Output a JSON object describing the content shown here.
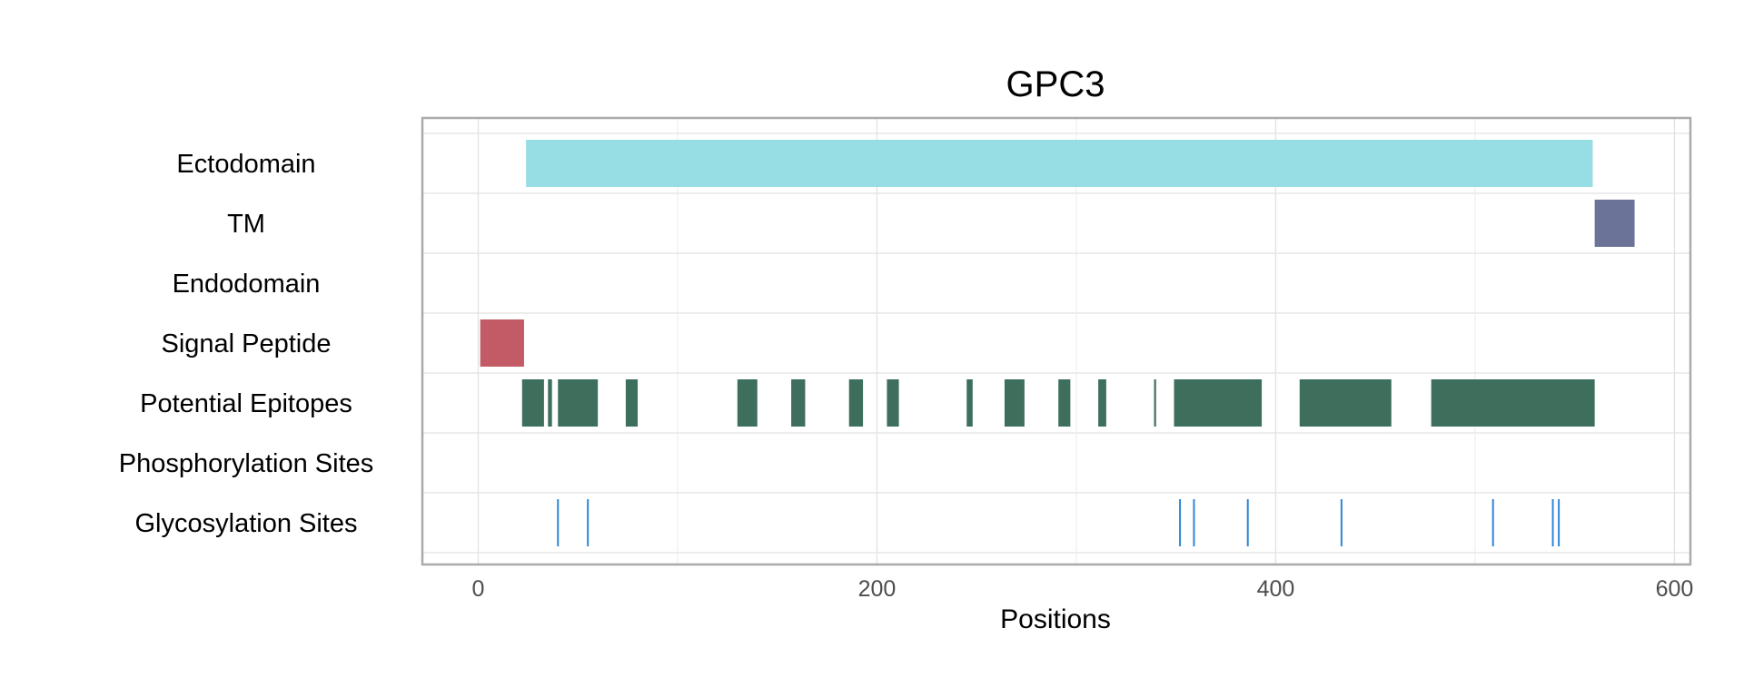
{
  "chart_data": {
    "type": "feature-track",
    "title": "GPC3",
    "xlabel": "Positions",
    "xlim": [
      -28,
      608
    ],
    "x_ticks": [
      0,
      200,
      400,
      600
    ],
    "x_tick_labels": [
      "0",
      "200",
      "400",
      "600"
    ],
    "grid": true,
    "rows": [
      "Ectodomain",
      "TM",
      "Endodomain",
      "Signal Peptide",
      "Potential Epitopes",
      "Phosphorylation Sites",
      "Glycosylation Sites"
    ],
    "colors": {
      "Ectodomain": "#97dde4",
      "TM": "#6b7399",
      "Signal Peptide": "#c25b66",
      "Potential Epitopes": "#3d6f5c",
      "Glycosylation Sites": "#2f86d6"
    },
    "features": [
      {
        "row": "Ectodomain",
        "start": 24,
        "end": 559
      },
      {
        "row": "TM",
        "start": 560,
        "end": 580
      },
      {
        "row": "Signal Peptide",
        "start": 1,
        "end": 23
      },
      {
        "row": "Potential Epitopes",
        "start": 22,
        "end": 33
      },
      {
        "row": "Potential Epitopes",
        "start": 35,
        "end": 37
      },
      {
        "row": "Potential Epitopes",
        "start": 40,
        "end": 60
      },
      {
        "row": "Potential Epitopes",
        "start": 74,
        "end": 80
      },
      {
        "row": "Potential Epitopes",
        "start": 130,
        "end": 140
      },
      {
        "row": "Potential Epitopes",
        "start": 157,
        "end": 164
      },
      {
        "row": "Potential Epitopes",
        "start": 186,
        "end": 193
      },
      {
        "row": "Potential Epitopes",
        "start": 205,
        "end": 211
      },
      {
        "row": "Potential Epitopes",
        "start": 245,
        "end": 248
      },
      {
        "row": "Potential Epitopes",
        "start": 264,
        "end": 274
      },
      {
        "row": "Potential Epitopes",
        "start": 291,
        "end": 297
      },
      {
        "row": "Potential Epitopes",
        "start": 311,
        "end": 315
      },
      {
        "row": "Potential Epitopes",
        "start": 339,
        "end": 340
      },
      {
        "row": "Potential Epitopes",
        "start": 349,
        "end": 393
      },
      {
        "row": "Potential Epitopes",
        "start": 412,
        "end": 458
      },
      {
        "row": "Potential Epitopes",
        "start": 478,
        "end": 560
      }
    ],
    "sites": [
      {
        "row": "Glycosylation Sites",
        "positions": [
          40,
          55,
          352,
          359,
          386,
          433,
          509,
          539,
          542
        ]
      }
    ]
  }
}
